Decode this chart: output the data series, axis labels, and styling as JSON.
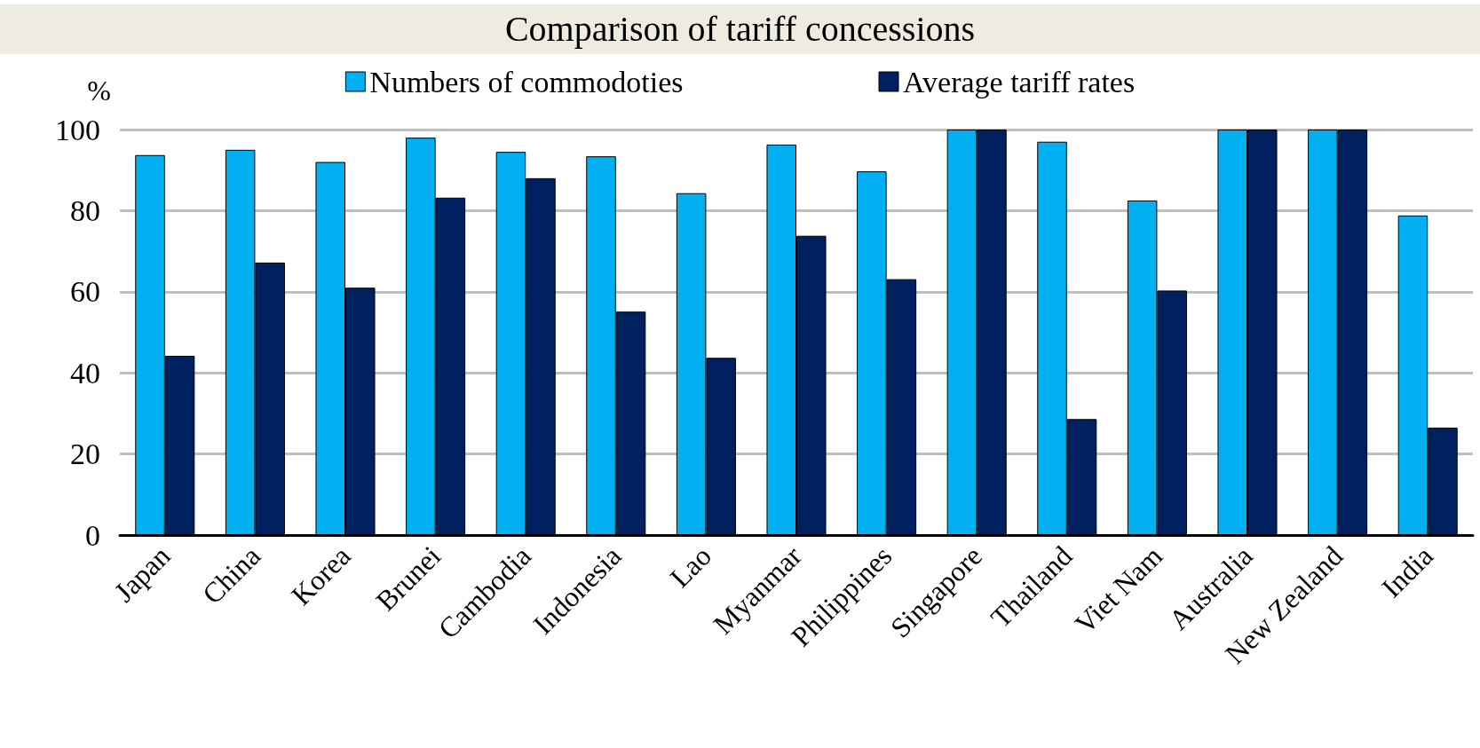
{
  "chart_data": {
    "type": "bar",
    "title": "Comparison of tariff concessions",
    "ylabel": "%",
    "categories": [
      "Japan",
      "China",
      "Korea",
      "Brunei",
      "Cambodia",
      "Indonesia",
      "Lao",
      "Myanmar",
      "Philippines",
      "Singapore",
      "Thailand",
      "Viet Nam",
      "Australia",
      "New Zealand",
      "India"
    ],
    "series": [
      {
        "name": "Numbers of commodoties",
        "color": "#00b0f0",
        "values": [
          93.7,
          95,
          92,
          98,
          94.5,
          93.4,
          84.3,
          96.3,
          89.7,
          100,
          97,
          82.5,
          100,
          100,
          78.8
        ]
      },
      {
        "name": "Average tariff rates",
        "color": "#002060",
        "values": [
          44.2,
          67.2,
          61,
          83.2,
          88,
          55.1,
          43.7,
          73.8,
          63.1,
          100,
          28.6,
          60.3,
          100,
          100,
          26.5
        ]
      }
    ],
    "ylim": [
      0,
      100
    ],
    "yticks": [
      0,
      20,
      40,
      60,
      80,
      100
    ],
    "grid": "y",
    "legend": "top"
  }
}
